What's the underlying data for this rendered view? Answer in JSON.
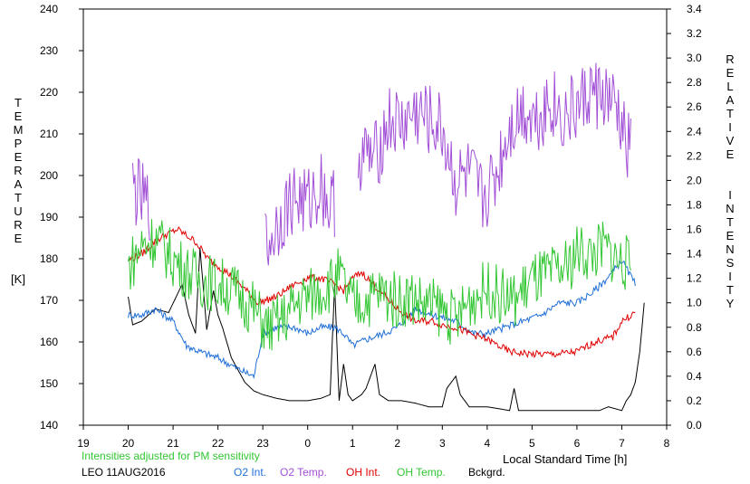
{
  "chart_data": {
    "type": "line",
    "colors": {
      "o2_int": "#1f6fd6",
      "o2_temp": "#a14fd6",
      "oh_int": "#e00000",
      "oh_temp": "#33c633",
      "background": "#000000",
      "note": "#33c633"
    },
    "left_axis": {
      "label_letters": [
        "T",
        "E",
        "M",
        "P",
        "E",
        "R",
        "A",
        "T",
        "U",
        "R",
        "E"
      ],
      "unit": "[K]",
      "ylim": [
        140,
        240
      ],
      "ticks": [
        140,
        150,
        160,
        170,
        180,
        190,
        200,
        210,
        220,
        230,
        240
      ]
    },
    "right_axis": {
      "label_letters_1": [
        "R",
        "E",
        "L",
        "A",
        "T",
        "I",
        "V",
        "E"
      ],
      "label_letters_2": [
        "I",
        "N",
        "T",
        "E",
        "N",
        "S",
        "I",
        "T",
        "Y"
      ],
      "ylim": [
        0.0,
        3.4
      ],
      "ticks": [
        "0.0",
        "0.2",
        "0.4",
        "0.6",
        "0.8",
        "1.0",
        "1.2",
        "1.4",
        "1.6",
        "1.8",
        "2.0",
        "2.2",
        "2.4",
        "2.6",
        "2.8",
        "3.0",
        "3.2",
        "3.4"
      ]
    },
    "x_axis": {
      "label": "Local Standard Time [h]",
      "ticks": [
        "19",
        "20",
        "21",
        "22",
        "23",
        "0",
        "1",
        "2",
        "3",
        "4",
        "5",
        "6",
        "7",
        "8"
      ],
      "xlim": [
        19,
        32
      ]
    },
    "grid": false,
    "note": "Intensities adjusted for PM sensitivity",
    "station": "LEO 11AUG2016",
    "legend": [
      {
        "key": "o2_int",
        "label": "O2 Int."
      },
      {
        "key": "o2_temp",
        "label": "O2 Temp."
      },
      {
        "key": "oh_int",
        "label": "OH Int."
      },
      {
        "key": "oh_temp",
        "label": "OH Temp."
      },
      {
        "key": "background",
        "label": "Bckgrd."
      }
    ],
    "series": [
      {
        "key": "background",
        "axis": "right",
        "x": [
          20.0,
          20.1,
          20.3,
          20.6,
          20.9,
          21.2,
          21.35,
          21.5,
          21.6,
          21.75,
          21.9,
          21.95,
          22.0,
          22.1,
          22.3,
          22.6,
          22.8,
          23.0,
          23.3,
          23.6,
          24.0,
          24.3,
          24.5,
          24.6,
          24.7,
          24.8,
          24.9,
          25.0,
          25.2,
          25.3,
          25.5,
          25.6,
          25.8,
          26.1,
          26.4,
          26.7,
          27.0,
          27.1,
          27.3,
          27.4,
          27.6,
          28.0,
          28.5,
          28.6,
          28.7,
          28.8,
          29.0,
          29.5,
          30.0,
          30.5,
          30.7,
          31.0,
          31.1,
          31.2,
          31.3,
          31.4,
          31.5
        ],
        "y": [
          1.05,
          0.82,
          0.85,
          0.95,
          0.92,
          1.15,
          0.9,
          0.75,
          1.45,
          0.78,
          1.1,
          1.0,
          0.9,
          0.8,
          0.55,
          0.35,
          0.28,
          0.25,
          0.22,
          0.2,
          0.2,
          0.22,
          0.25,
          1.15,
          0.2,
          0.5,
          0.25,
          0.2,
          0.25,
          0.3,
          0.5,
          0.25,
          0.2,
          0.2,
          0.18,
          0.15,
          0.15,
          0.3,
          0.4,
          0.25,
          0.15,
          0.15,
          0.12,
          0.3,
          0.12,
          0.12,
          0.12,
          0.12,
          0.12,
          0.12,
          0.15,
          0.12,
          0.2,
          0.25,
          0.35,
          0.6,
          1.0
        ]
      },
      {
        "key": "o2_int",
        "axis": "right",
        "x": [
          20.0,
          20.3,
          20.6,
          21.0,
          21.3,
          21.6,
          22.0,
          22.5,
          22.8,
          23.0,
          23.3,
          23.7,
          24.0,
          24.3,
          24.6,
          24.8,
          25.0,
          25.3,
          25.7,
          26.0,
          26.4,
          26.8,
          27.3,
          27.7,
          28.0,
          28.4,
          28.8,
          29.2,
          29.6,
          30.0,
          30.4,
          30.8,
          31.0,
          31.3
        ],
        "y": [
          0.9,
          0.9,
          0.95,
          0.85,
          0.65,
          0.6,
          0.55,
          0.45,
          0.4,
          0.75,
          0.8,
          0.8,
          0.75,
          0.8,
          0.8,
          0.75,
          0.65,
          0.7,
          0.75,
          0.8,
          0.95,
          0.9,
          0.85,
          0.75,
          0.75,
          0.8,
          0.85,
          0.9,
          1.0,
          1.0,
          1.1,
          1.25,
          1.35,
          1.15
        ]
      },
      {
        "key": "oh_int",
        "axis": "right",
        "x": [
          20.0,
          20.3,
          20.6,
          20.8,
          21.1,
          21.5,
          21.8,
          22.2,
          22.5,
          22.9,
          23.3,
          23.7,
          24.0,
          24.3,
          24.6,
          24.8,
          25.0,
          25.2,
          25.6,
          26.0,
          26.4,
          26.8,
          27.0,
          27.3,
          27.6,
          28.0,
          28.5,
          29.0,
          29.5,
          30.0,
          30.4,
          30.8,
          31.0,
          31.3
        ],
        "y": [
          1.35,
          1.4,
          1.5,
          1.55,
          1.6,
          1.5,
          1.35,
          1.25,
          1.15,
          1.0,
          1.05,
          1.15,
          1.2,
          1.2,
          1.15,
          1.1,
          1.2,
          1.25,
          1.1,
          0.95,
          0.85,
          0.85,
          0.82,
          0.8,
          0.75,
          0.7,
          0.6,
          0.58,
          0.58,
          0.6,
          0.68,
          0.72,
          0.85,
          0.92
        ]
      },
      {
        "key": "oh_temp",
        "axis": "left",
        "x": [
          20.0,
          20.3,
          20.6,
          21.0,
          21.3,
          21.6,
          22.0,
          22.4,
          22.8,
          23.1,
          23.5,
          23.8,
          24.2,
          24.5,
          24.7,
          25.0,
          25.3,
          25.6,
          26.0,
          26.3,
          26.6,
          27.0,
          27.3,
          27.6,
          28.0,
          28.3,
          28.6,
          29.0,
          29.4,
          29.8,
          30.0,
          30.3,
          30.6,
          30.9,
          31.2
        ],
        "y": [
          178,
          183,
          185,
          180,
          177,
          175,
          174,
          172,
          168,
          163,
          166,
          170,
          172,
          174,
          176,
          169,
          170,
          172,
          170,
          171,
          169,
          168,
          165,
          170,
          173,
          171,
          170,
          175,
          176,
          178,
          182,
          181,
          183,
          180,
          178
        ]
      },
      {
        "key": "o2_temp",
        "axis": "left",
        "x": [
          20.1,
          20.4,
          23.1,
          23.4,
          23.7,
          24.0,
          24.3,
          24.5,
          25.2,
          25.5,
          25.8,
          26.1,
          26.4,
          26.7,
          27.0,
          27.3,
          27.6,
          27.9,
          28.2,
          28.5,
          28.8,
          29.1,
          29.4,
          29.7,
          30.0,
          30.3,
          30.6,
          30.9,
          31.1,
          31.2
        ],
        "y": [
          197,
          193,
          183,
          190,
          195,
          193,
          198,
          192,
          205,
          204,
          213,
          212,
          215,
          213,
          211,
          198,
          200,
          194,
          200,
          212,
          216,
          214,
          218,
          214,
          216,
          220,
          219,
          215,
          207,
          206
        ]
      }
    ]
  }
}
